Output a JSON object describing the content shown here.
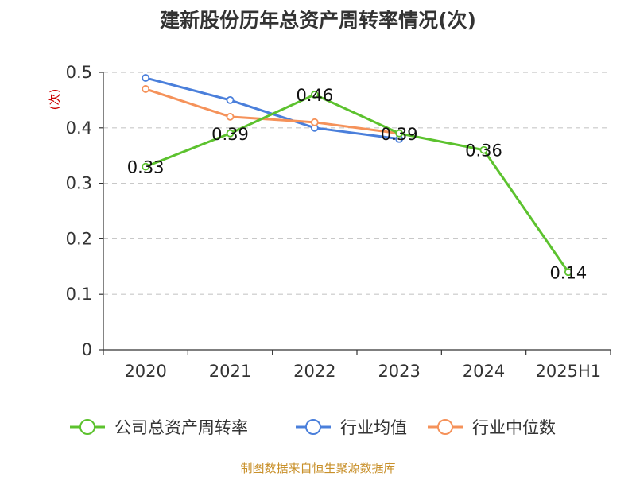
{
  "chart_data": {
    "type": "line",
    "title": "建新股份历年总资产周转率情况(次)",
    "ylabel": "(次)",
    "xlabel": "",
    "categories": [
      "2020",
      "2021",
      "2022",
      "2023",
      "2024",
      "2025H1"
    ],
    "ylim": [
      0,
      0.5
    ],
    "yticks": [
      "0",
      "0.1",
      "0.2",
      "0.3",
      "0.4",
      "0.5"
    ],
    "grid": true,
    "legend_position": "bottom",
    "series": [
      {
        "name": "公司总资产周转率",
        "color": "#5cc22e",
        "values": [
          0.33,
          0.39,
          0.46,
          0.39,
          0.36,
          0.14
        ],
        "labels": [
          "0.33",
          "0.39",
          "0.46",
          "0.39",
          "0.36",
          "0.14"
        ]
      },
      {
        "name": "行业均值",
        "color": "#4a7fdb",
        "values": [
          0.49,
          0.45,
          0.4,
          0.38,
          null,
          null
        ]
      },
      {
        "name": "行业中位数",
        "color": "#f5925a",
        "values": [
          0.47,
          0.42,
          0.41,
          0.39,
          null,
          null
        ]
      }
    ]
  },
  "source_note": "制图数据来自恒生聚源数据库"
}
